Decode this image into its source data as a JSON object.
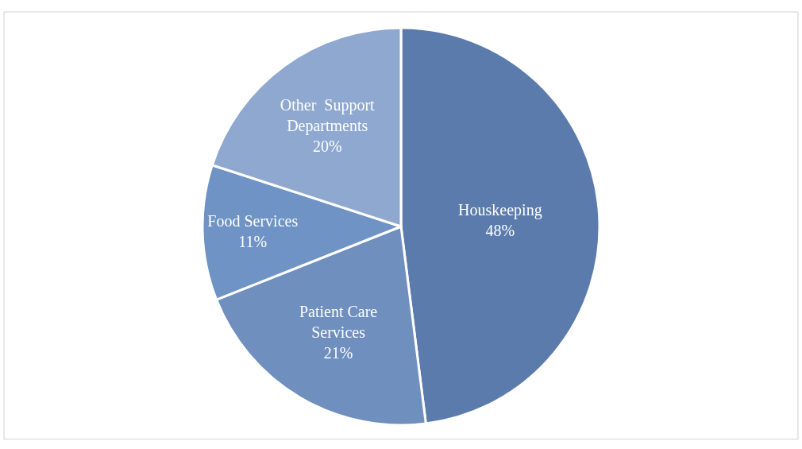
{
  "chart_data": {
    "type": "pie",
    "categories": [
      "Houskeeping",
      "Patient Care Services",
      "Food Services",
      "Other  Support Departments"
    ],
    "values": [
      48,
      21,
      11,
      20
    ],
    "colors": [
      "#5a7bab",
      "#6f8fbf",
      "#6e93c4",
      "#8ea8d0"
    ],
    "value_labels": [
      "48%",
      "21%",
      "11%",
      "20%"
    ],
    "legend": false
  }
}
